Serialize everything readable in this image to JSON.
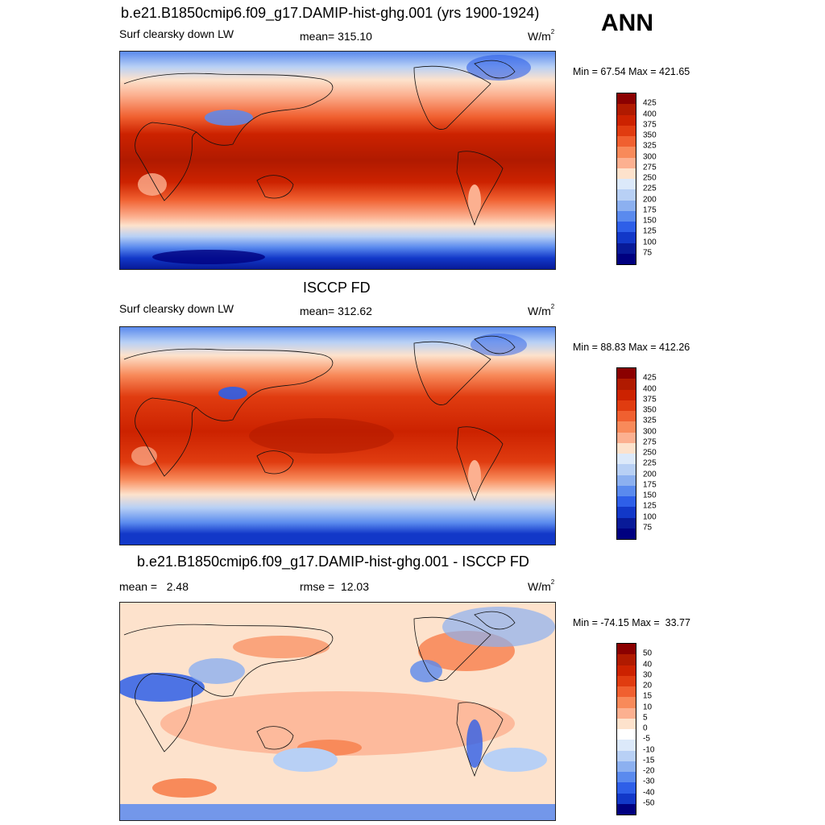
{
  "season": "ANN",
  "panels": [
    {
      "title": "b.e21.B1850cmip6.f09_g17.DAMIP-hist-ghg.001 (yrs 1900-1924)",
      "left_label": "Surf clearsky down LW",
      "center_label": "mean= 315.10",
      "units": "W/m",
      "units_sup": "2",
      "minmax": "Min =  67.54 Max = 421.65",
      "ticks": [
        "425",
        "400",
        "375",
        "350",
        "325",
        "300",
        "275",
        "250",
        "225",
        "200",
        "175",
        "150",
        "125",
        "100",
        "75"
      ],
      "colors": [
        "#8b0000",
        "#b01a00",
        "#cc2200",
        "#e03c10",
        "#f06030",
        "#f88a5a",
        "#fcb090",
        "#fde2cc",
        "#dce9fa",
        "#b8d0f5",
        "#8cb0f0",
        "#5a8aee",
        "#2e5fe8",
        "#1238c8",
        "#081a98",
        "#000080"
      ]
    },
    {
      "title": "ISCCP FD",
      "left_label": "Surf clearsky down LW",
      "center_label": "mean= 312.62",
      "units": "W/m",
      "units_sup": "2",
      "minmax": "Min =  88.83 Max = 412.26",
      "ticks": [
        "425",
        "400",
        "375",
        "350",
        "325",
        "300",
        "275",
        "250",
        "225",
        "200",
        "175",
        "150",
        "125",
        "100",
        "75"
      ],
      "colors": [
        "#8b0000",
        "#b01a00",
        "#cc2200",
        "#e03c10",
        "#f06030",
        "#f88a5a",
        "#fcb090",
        "#fde2cc",
        "#dce9fa",
        "#b8d0f5",
        "#8cb0f0",
        "#5a8aee",
        "#2e5fe8",
        "#1238c8",
        "#081a98",
        "#000080"
      ]
    },
    {
      "title": "b.e21.B1850cmip6.f09_g17.DAMIP-hist-ghg.001 - ISCCP FD",
      "left_label": "mean =   2.48",
      "center_label": "rmse =  12.03",
      "units": "W/m",
      "units_sup": "2",
      "minmax": "Min = -74.15 Max =  33.77",
      "ticks": [
        "50",
        "40",
        "30",
        "20",
        "15",
        "10",
        "5",
        "0",
        "-5",
        "-10",
        "-15",
        "-20",
        "-30",
        "-40",
        "-50"
      ],
      "colors": [
        "#8b0000",
        "#b01a00",
        "#cc2200",
        "#e03c10",
        "#f06030",
        "#f88a5a",
        "#fcb090",
        "#fde2cc",
        "#ffffff",
        "#dce9fa",
        "#b8d0f5",
        "#8cb0f0",
        "#5a8aee",
        "#2e5fe8",
        "#1238c8",
        "#000080"
      ]
    }
  ]
}
